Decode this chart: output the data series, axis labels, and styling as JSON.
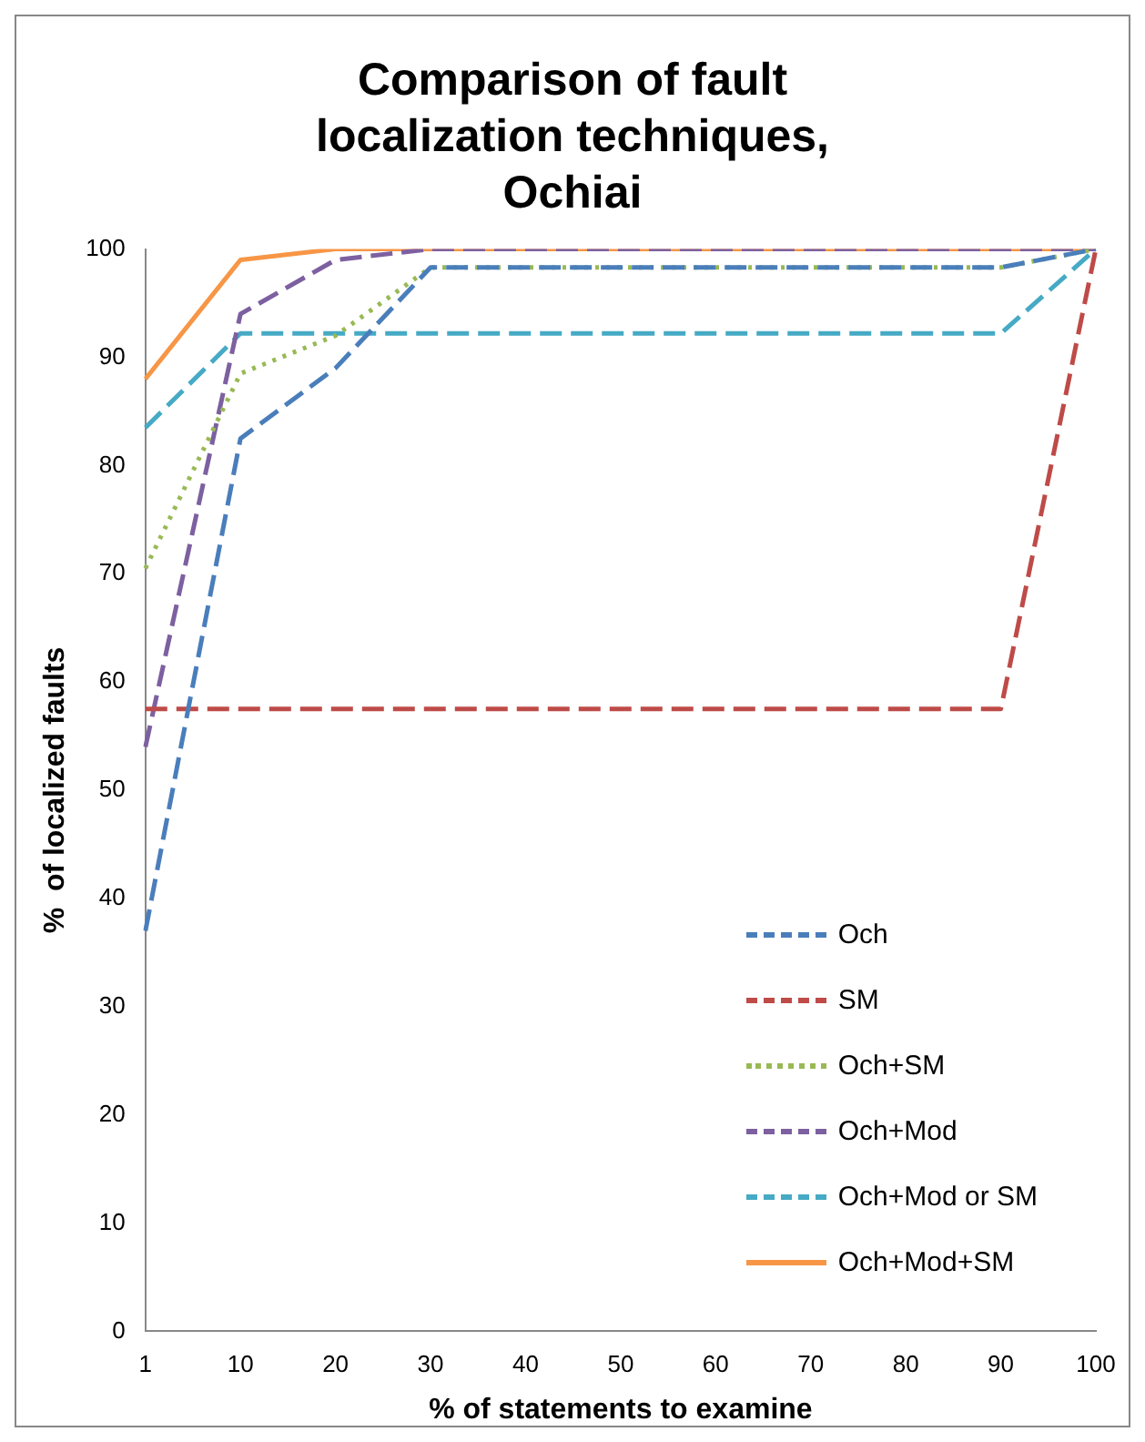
{
  "chart_data": {
    "type": "line",
    "title": "Comparison of fault localization techniques, Ochiai",
    "xlabel": "% of statements to examine",
    "ylabel": "%  of localized faults",
    "categories": [
      "1",
      "10",
      "20",
      "30",
      "40",
      "50",
      "60",
      "70",
      "80",
      "90",
      "100"
    ],
    "series": [
      {
        "name": "Och",
        "color": "#4a7ebb",
        "line_style": "dashed",
        "values": [
          37,
          82.5,
          89,
          98.3,
          98.3,
          98.3,
          98.3,
          98.3,
          98.3,
          98.3,
          100
        ]
      },
      {
        "name": "SM",
        "color": "#be4b48",
        "line_style": "dashed",
        "values": [
          57.5,
          57.5,
          57.5,
          57.5,
          57.5,
          57.5,
          57.5,
          57.5,
          57.5,
          57.5,
          100
        ]
      },
      {
        "name": "Och+SM",
        "color": "#98b954",
        "line_style": "dotted",
        "values": [
          70.5,
          88.5,
          92,
          98.3,
          98.3,
          98.3,
          98.3,
          98.3,
          98.3,
          98.3,
          100
        ]
      },
      {
        "name": "Och+Mod",
        "color": "#7d60a0",
        "line_style": "dashed",
        "values": [
          54,
          94,
          99,
          100,
          100,
          100,
          100,
          100,
          100,
          100,
          100
        ]
      },
      {
        "name": "Och+Mod or SM",
        "color": "#46aac5",
        "line_style": "dashed",
        "values": [
          83.5,
          92.2,
          92.2,
          92.2,
          92.2,
          92.2,
          92.2,
          92.2,
          92.2,
          92.2,
          100
        ]
      },
      {
        "name": "Och+Mod+SM",
        "color": "#f79646",
        "line_style": "solid",
        "values": [
          88,
          99,
          100,
          100,
          100,
          100,
          100,
          100,
          100,
          100,
          100
        ]
      }
    ],
    "ylim": [
      0,
      100
    ],
    "yticks": [
      0,
      10,
      20,
      30,
      40,
      50,
      60,
      70,
      80,
      90,
      100
    ],
    "grid": false,
    "legend": "bottom right",
    "marker": "none"
  }
}
